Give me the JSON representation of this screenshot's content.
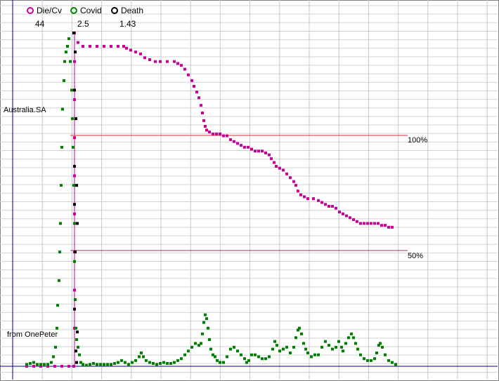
{
  "chart_data": {
    "type": "scatter",
    "region_label": "Australia.SA",
    "credit": "from OnePeter",
    "legend": [
      {
        "name": "Die/Cv",
        "value": "44",
        "color": "#cc0099"
      },
      {
        "name": "Covid",
        "value": "2.5",
        "color": "#008000"
      },
      {
        "name": "Death",
        "value": "1.43",
        "color": "#000000"
      }
    ],
    "reference_lines": [
      {
        "label": "100%",
        "value": 100,
        "color": "#cc3333"
      },
      {
        "label": "50%",
        "value": 50,
        "color": "#993366"
      }
    ],
    "grid": true,
    "ylim": [
      0,
      182
    ],
    "xlim": [
      0,
      690
    ],
    "series": [
      {
        "key": "die_cv",
        "color": "#cc0099",
        "points": [
          [
            20,
            0
          ],
          [
            30,
            0
          ],
          [
            40,
            0
          ],
          [
            50,
            0
          ],
          [
            60,
            0
          ],
          [
            70,
            0
          ],
          [
            80,
            0
          ],
          [
            87,
            0
          ],
          [
            88,
            20
          ],
          [
            88,
            40
          ],
          [
            88,
            60
          ],
          [
            88,
            80
          ],
          [
            88,
            100
          ],
          [
            88,
            120
          ],
          [
            88,
            140
          ],
          [
            88,
            160
          ],
          [
            88,
            175
          ],
          [
            93,
            170
          ],
          [
            100,
            168
          ],
          [
            110,
            168
          ],
          [
            120,
            168
          ],
          [
            130,
            168
          ],
          [
            140,
            168
          ],
          [
            150,
            168
          ],
          [
            158,
            168
          ],
          [
            162,
            167
          ],
          [
            168,
            166
          ],
          [
            175,
            165
          ],
          [
            182,
            164
          ],
          [
            188,
            162
          ],
          [
            195,
            161
          ],
          [
            203,
            160
          ],
          [
            210,
            160
          ],
          [
            220,
            160
          ],
          [
            230,
            160
          ],
          [
            235,
            159
          ],
          [
            240,
            158
          ],
          [
            245,
            156
          ],
          [
            250,
            153
          ],
          [
            255,
            150
          ],
          [
            258,
            147
          ],
          [
            262,
            144
          ],
          [
            265,
            141
          ],
          [
            268,
            137
          ],
          [
            270,
            133
          ],
          [
            272,
            129
          ],
          [
            274,
            126
          ],
          [
            276,
            124
          ],
          [
            280,
            123
          ],
          [
            285,
            122
          ],
          [
            290,
            122
          ],
          [
            295,
            122
          ],
          [
            300,
            121
          ],
          [
            305,
            121
          ],
          [
            310,
            119
          ],
          [
            315,
            118
          ],
          [
            320,
            117
          ],
          [
            325,
            116
          ],
          [
            330,
            115
          ],
          [
            335,
            115
          ],
          [
            340,
            114
          ],
          [
            345,
            113
          ],
          [
            350,
            113
          ],
          [
            355,
            113
          ],
          [
            360,
            112
          ],
          [
            365,
            111
          ],
          [
            368,
            109
          ],
          [
            372,
            107
          ],
          [
            375,
            105
          ],
          [
            380,
            104
          ],
          [
            385,
            103
          ],
          [
            390,
            101
          ],
          [
            395,
            99
          ],
          [
            400,
            97
          ],
          [
            403,
            95
          ],
          [
            406,
            92
          ],
          [
            410,
            90
          ],
          [
            415,
            89
          ],
          [
            420,
            88
          ],
          [
            428,
            88
          ],
          [
            435,
            87
          ],
          [
            440,
            86
          ],
          [
            445,
            85
          ],
          [
            450,
            84
          ],
          [
            455,
            84
          ],
          [
            460,
            83
          ],
          [
            465,
            81
          ],
          [
            470,
            80
          ],
          [
            475,
            79
          ],
          [
            480,
            78
          ],
          [
            485,
            77
          ],
          [
            490,
            76
          ],
          [
            495,
            75
          ],
          [
            500,
            75
          ],
          [
            505,
            75
          ],
          [
            510,
            75
          ],
          [
            515,
            75
          ],
          [
            520,
            75
          ],
          [
            525,
            74
          ],
          [
            530,
            74
          ],
          [
            535,
            73
          ],
          [
            540,
            73
          ]
        ]
      },
      {
        "key": "covid",
        "color": "#008000",
        "points": [
          [
            20,
            1
          ],
          [
            25,
            1.5
          ],
          [
            30,
            2
          ],
          [
            35,
            1
          ],
          [
            40,
            1
          ],
          [
            45,
            1
          ],
          [
            50,
            1
          ],
          [
            55,
            2
          ],
          [
            58,
            5
          ],
          [
            61,
            10
          ],
          [
            63,
            20
          ],
          [
            64,
            32
          ],
          [
            66,
            45
          ],
          [
            67,
            60
          ],
          [
            68,
            75
          ],
          [
            69,
            95
          ],
          [
            70,
            115
          ],
          [
            71,
            135
          ],
          [
            73,
            150
          ],
          [
            74,
            160
          ],
          [
            76,
            165
          ],
          [
            78,
            168
          ],
          [
            80,
            172
          ],
          [
            82,
            160
          ],
          [
            84,
            145
          ],
          [
            85,
            130
          ],
          [
            86,
            115
          ],
          [
            87,
            95
          ],
          [
            88,
            75
          ],
          [
            88,
            55
          ],
          [
            89,
            35
          ],
          [
            90,
            20
          ],
          [
            91,
            14
          ],
          [
            93,
            10
          ],
          [
            95,
            6
          ],
          [
            97,
            2
          ],
          [
            100,
            1
          ],
          [
            105,
            0.5
          ],
          [
            110,
            1
          ],
          [
            115,
            1.5
          ],
          [
            120,
            1
          ],
          [
            125,
            1
          ],
          [
            130,
            1
          ],
          [
            135,
            1
          ],
          [
            140,
            1
          ],
          [
            145,
            1.5
          ],
          [
            150,
            2
          ],
          [
            155,
            3
          ],
          [
            160,
            2
          ],
          [
            165,
            1
          ],
          [
            170,
            2
          ],
          [
            175,
            3
          ],
          [
            180,
            5
          ],
          [
            183,
            7
          ],
          [
            186,
            5
          ],
          [
            190,
            3
          ],
          [
            195,
            2
          ],
          [
            200,
            1.5
          ],
          [
            205,
            1
          ],
          [
            210,
            1.5
          ],
          [
            215,
            2
          ],
          [
            220,
            1.5
          ],
          [
            225,
            1.5
          ],
          [
            230,
            2
          ],
          [
            235,
            3
          ],
          [
            240,
            4
          ],
          [
            245,
            6
          ],
          [
            250,
            8
          ],
          [
            255,
            10
          ],
          [
            260,
            12
          ],
          [
            265,
            11
          ],
          [
            268,
            12
          ],
          [
            270,
            17
          ],
          [
            272,
            23
          ],
          [
            274,
            27
          ],
          [
            276,
            25
          ],
          [
            278,
            20
          ],
          [
            280,
            14
          ],
          [
            282,
            9
          ],
          [
            285,
            6
          ],
          [
            288,
            5
          ],
          [
            291,
            3
          ],
          [
            295,
            2
          ],
          [
            300,
            2
          ],
          [
            305,
            5
          ],
          [
            310,
            9
          ],
          [
            315,
            10
          ],
          [
            320,
            8
          ],
          [
            325,
            6
          ],
          [
            330,
            4
          ],
          [
            333,
            2
          ],
          [
            336,
            3
          ],
          [
            340,
            6
          ],
          [
            345,
            6
          ],
          [
            350,
            5
          ],
          [
            355,
            4
          ],
          [
            360,
            4
          ],
          [
            365,
            5
          ],
          [
            370,
            9
          ],
          [
            373,
            13
          ],
          [
            376,
            11
          ],
          [
            380,
            8
          ],
          [
            385,
            9
          ],
          [
            390,
            10
          ],
          [
            395,
            7
          ],
          [
            400,
            10
          ],
          [
            403,
            15
          ],
          [
            406,
            19
          ],
          [
            408,
            20
          ],
          [
            411,
            17
          ],
          [
            414,
            12
          ],
          [
            417,
            9
          ],
          [
            420,
            7
          ],
          [
            425,
            5
          ],
          [
            430,
            6
          ],
          [
            435,
            6
          ],
          [
            440,
            10
          ],
          [
            445,
            13
          ],
          [
            450,
            11
          ],
          [
            455,
            9
          ],
          [
            460,
            10
          ],
          [
            464,
            13
          ],
          [
            468,
            10
          ],
          [
            470,
            8
          ],
          [
            474,
            12
          ],
          [
            478,
            15
          ],
          [
            482,
            17
          ],
          [
            485,
            15
          ],
          [
            488,
            12
          ],
          [
            491,
            9
          ],
          [
            495,
            6
          ],
          [
            500,
            4
          ],
          [
            505,
            3
          ],
          [
            510,
            3
          ],
          [
            515,
            4
          ],
          [
            518,
            7
          ],
          [
            521,
            11
          ],
          [
            523,
            12
          ],
          [
            526,
            10
          ],
          [
            530,
            6
          ],
          [
            535,
            3
          ],
          [
            540,
            2
          ],
          [
            545,
            1
          ]
        ]
      },
      {
        "key": "death",
        "color": "#000000",
        "points": [
          [
            87,
            175
          ],
          [
            89,
            165
          ],
          [
            88,
            145
          ],
          [
            90,
            130
          ],
          [
            88,
            105
          ],
          [
            91,
            95
          ],
          [
            88,
            85
          ],
          [
            92,
            75
          ],
          [
            89,
            60
          ],
          [
            88,
            30
          ],
          [
            92,
            18
          ],
          [
            90,
            8
          ],
          [
            91,
            2
          ]
        ]
      }
    ]
  }
}
